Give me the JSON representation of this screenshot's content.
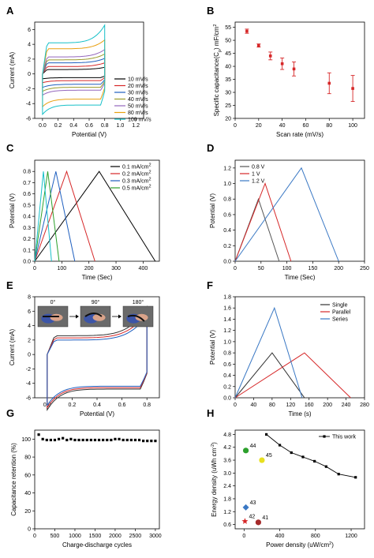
{
  "panel_letters": [
    "A",
    "B",
    "C",
    "D",
    "E",
    "F",
    "G",
    "H"
  ],
  "colors": {
    "black": "#000000",
    "red": "#d62728",
    "olive": "#9a9a2a",
    "blue": "#1f5fbf",
    "purple": "#9467bd",
    "orange": "#e8a010",
    "cyan": "#17c0c8",
    "green": "#2ca02c",
    "darkred": "#a52a2a",
    "steelblue": "#3a78c4"
  },
  "chart_data": [
    {
      "panel": "A",
      "type": "line",
      "xlabel": "Potential (V)",
      "ylabel": "Current (mA)",
      "xlim": [
        -0.1,
        1.3
      ],
      "ylim": [
        -6,
        7
      ],
      "xticks": [
        0.0,
        0.2,
        0.4,
        0.6,
        0.8,
        1.0,
        1.2
      ],
      "xticklabels": [
        "0.0",
        "0.2",
        "0.4",
        "0.6",
        "0.8",
        "1.0",
        "1.2"
      ],
      "yticks": [
        -6,
        -4,
        -2,
        0,
        2,
        4,
        6
      ],
      "yticklabels": [
        "-6",
        "-4",
        "-2",
        "0",
        "2",
        "4",
        "6"
      ],
      "legend_position": "lower-right",
      "series": [
        {
          "name": "10 mV/s",
          "color": "#000000",
          "upper": 0.6,
          "lower": -0.5,
          "tip": 0.9
        },
        {
          "name": "20 mV/s",
          "color": "#d62728",
          "upper": 1.0,
          "lower": -0.9,
          "tip": 1.5
        },
        {
          "name": "30 mV/s",
          "color": "#1f5fbf",
          "upper": 1.5,
          "lower": -1.4,
          "tip": 2.1
        },
        {
          "name": "40 mV/s",
          "color": "#9a9a2a",
          "upper": 1.9,
          "lower": -1.8,
          "tip": 2.7
        },
        {
          "name": "50 mV/s",
          "color": "#9467bd",
          "upper": 2.3,
          "lower": -2.2,
          "tip": 3.3
        },
        {
          "name": "80 mV/s",
          "color": "#e8a010",
          "upper": 3.4,
          "lower": -3.4,
          "tip": 4.6
        },
        {
          "name": "100 mV/s",
          "color": "#17c0c8",
          "upper": 4.2,
          "lower": -4.2,
          "tip": 6.6
        }
      ]
    },
    {
      "panel": "B",
      "type": "scatter",
      "xlabel": "Scan rate (mV/s)",
      "ylabel": "Specific capacitance(C",
      "ylabel_sub": "p",
      "ylabel_tail": ") mF/cm",
      "ylabel_sup": "2",
      "xlim": [
        0,
        110
      ],
      "ylim": [
        20,
        57
      ],
      "xticks": [
        0,
        20,
        40,
        60,
        80,
        100
      ],
      "xticklabels": [
        "0",
        "20",
        "40",
        "60",
        "80",
        "100"
      ],
      "yticks": [
        20,
        25,
        30,
        35,
        40,
        45,
        50,
        55
      ],
      "yticklabels": [
        "20",
        "25",
        "30",
        "35",
        "40",
        "45",
        "50",
        "55"
      ],
      "x": [
        10,
        20,
        30,
        40,
        50,
        80,
        100
      ],
      "y": [
        53.5,
        48.0,
        44.0,
        41.0,
        39.0,
        33.5,
        31.5
      ],
      "err": [
        0.8,
        0.6,
        1.5,
        2.2,
        2.7,
        4.0,
        5.0
      ],
      "color": "#d62728"
    },
    {
      "panel": "C",
      "type": "line",
      "xlabel": "Time (Sec)",
      "ylabel": "Potential (V)",
      "xlim": [
        0,
        460
      ],
      "ylim": [
        0,
        0.9
      ],
      "xticks": [
        0,
        100,
        200,
        300,
        400
      ],
      "xticklabels": [
        "0",
        "100",
        "200",
        "300",
        "400"
      ],
      "yticks": [
        0.0,
        0.1,
        0.2,
        0.3,
        0.4,
        0.5,
        0.6,
        0.7,
        0.8
      ],
      "yticklabels": [
        "0.0",
        "0.1",
        "0.2",
        "0.3",
        "0.4",
        "0.5",
        "0.6",
        "0.7",
        "0.8"
      ],
      "legend_position": "top-right",
      "series": [
        {
          "name": "0.1 mA/cm",
          "sup": "2",
          "color": "#000000",
          "peak_t": 238,
          "end_t": 445,
          "peak_v": 0.8
        },
        {
          "name": "0.2 mA/cm",
          "sup": "2",
          "color": "#d62728",
          "peak_t": 118,
          "end_t": 222,
          "peak_v": 0.8
        },
        {
          "name": "0.3 mA/cm",
          "sup": "2",
          "color": "#1f5fbf",
          "peak_t": 78,
          "end_t": 148,
          "peak_v": 0.8
        },
        {
          "name": "0.5 mA/cm",
          "sup": "2",
          "color": "#2ca02c",
          "peak_t": 48,
          "end_t": 90,
          "peak_v": 0.8
        },
        {
          "name": "",
          "sup": "",
          "color": "#17c0c8",
          "peak_t": 32,
          "end_t": 62,
          "peak_v": 0.8
        }
      ]
    },
    {
      "panel": "D",
      "type": "line",
      "xlabel": "Time (Sec)",
      "ylabel": "Potential (V)",
      "xlim": [
        0,
        250
      ],
      "ylim": [
        0,
        1.3
      ],
      "xticks": [
        0,
        50,
        100,
        150,
        200,
        250
      ],
      "xticklabels": [
        "0",
        "50",
        "100",
        "150",
        "200",
        "250"
      ],
      "yticks": [
        0.0,
        0.2,
        0.4,
        0.6,
        0.8,
        1.0,
        1.2
      ],
      "yticklabels": [
        "0.0",
        "0.2",
        "0.4",
        "0.6",
        "0.8",
        "1.0",
        "1.2"
      ],
      "legend_position": "top-left",
      "series": [
        {
          "name": "0.8 V",
          "color": "#555555",
          "peak_t": 45,
          "end_t": 85,
          "peak_v": 0.8
        },
        {
          "name": "1 V",
          "color": "#d62728",
          "peak_t": 58,
          "end_t": 108,
          "peak_v": 1.0
        },
        {
          "name": "1.2 V",
          "color": "#3a78c4",
          "peak_t": 128,
          "end_t": 200,
          "peak_v": 1.2
        }
      ]
    },
    {
      "panel": "E",
      "type": "line",
      "xlabel": "Potential (V)",
      "ylabel": "Current (mA)",
      "xlim": [
        -0.1,
        0.9
      ],
      "ylim": [
        -6,
        8
      ],
      "xticks": [
        0.0,
        0.2,
        0.4,
        0.6,
        0.8
      ],
      "xticklabels": [
        "0.0",
        "0.2",
        "0.4",
        "0.6",
        "0.8"
      ],
      "yticks": [
        -6,
        -4,
        -2,
        0,
        2,
        4,
        6,
        8
      ],
      "yticklabels": [
        "-6",
        "-4",
        "-2",
        "0",
        "2",
        "4",
        "6",
        "8"
      ],
      "inset_labels": [
        "0°",
        "90°",
        "180°"
      ],
      "series": [
        {
          "name": "0°",
          "color": "#333333",
          "upper": 2.6,
          "lower": -4.8,
          "tip": 6.6
        },
        {
          "name": "90°",
          "color": "#d62728",
          "upper": 2.3,
          "lower": -4.6,
          "tip": 6.0
        },
        {
          "name": "180°",
          "color": "#1f5fbf",
          "upper": 2.0,
          "lower": -4.4,
          "tip": 5.5
        }
      ]
    },
    {
      "panel": "F",
      "type": "line",
      "xlabel": "Time (s)",
      "ylabel": "Potential (V)",
      "xlim": [
        0,
        280
      ],
      "ylim": [
        0,
        1.8
      ],
      "xticks": [
        0,
        40,
        80,
        120,
        160,
        200,
        240,
        280
      ],
      "xticklabels": [
        "0",
        "40",
        "80",
        "120",
        "160",
        "200",
        "240",
        "280"
      ],
      "yticks": [
        0.0,
        0.2,
        0.4,
        0.6,
        0.8,
        1.0,
        1.2,
        1.4,
        1.6,
        1.8
      ],
      "yticklabels": [
        "0.0",
        "0.2",
        "0.4",
        "0.6",
        "0.8",
        "1.0",
        "1.2",
        "1.4",
        "1.6",
        "1.8"
      ],
      "legend_position": "top-right",
      "series": [
        {
          "name": "Single",
          "color": "#333333",
          "peak_t": 80,
          "end_t": 150,
          "peak_v": 0.8
        },
        {
          "name": "Parallel",
          "color": "#d62728",
          "peak_t": 150,
          "end_t": 250,
          "peak_v": 0.8
        },
        {
          "name": "Series",
          "color": "#3a78c4",
          "peak_t": 85,
          "end_t": 145,
          "peak_v": 1.6
        }
      ]
    },
    {
      "panel": "G",
      "type": "scatter",
      "xlabel": "Charge-discharge cycles",
      "ylabel": "Capacitance retention (%)",
      "xlim": [
        0,
        3100
      ],
      "ylim": [
        0,
        110
      ],
      "xticks": [
        0,
        500,
        1000,
        1500,
        2000,
        2500,
        3000
      ],
      "xticklabels": [
        "0",
        "500",
        "1000",
        "1500",
        "2000",
        "2500",
        "3000"
      ],
      "yticks": [
        0,
        20,
        40,
        60,
        80,
        100
      ],
      "yticklabels": [
        "0",
        "20",
        "40",
        "60",
        "80",
        "100"
      ],
      "x": [
        100,
        200,
        300,
        400,
        500,
        600,
        700,
        800,
        900,
        1000,
        1100,
        1200,
        1300,
        1400,
        1500,
        1600,
        1700,
        1800,
        1900,
        2000,
        2100,
        2200,
        2300,
        2400,
        2500,
        2600,
        2700,
        2800,
        2900,
        3000
      ],
      "y": [
        105,
        100,
        99,
        99,
        99,
        100,
        101,
        99,
        100,
        99,
        99,
        99,
        99,
        99,
        99,
        99,
        99,
        99,
        99,
        100,
        100,
        99,
        99,
        99,
        99,
        99,
        98,
        98,
        98,
        98
      ],
      "color": "#000000"
    },
    {
      "panel": "H",
      "type": "scatter",
      "xlabel": "Power density (uW/cm",
      "xlabel_sup": "2",
      "xlabel_tail": ")",
      "ylabel": "Energy density (uWh cm",
      "ylabel_sup": "-2",
      "ylabel_tail": ")",
      "xlim": [
        -100,
        1350
      ],
      "ylim": [
        0.4,
        5.0
      ],
      "xticks": [
        0,
        400,
        800,
        1200
      ],
      "xticklabels": [
        "0",
        "400",
        "800",
        "1200"
      ],
      "yticks": [
        0.6,
        1.2,
        1.8,
        2.4,
        3.0,
        3.6,
        4.2,
        4.8
      ],
      "yticklabels": [
        "0.6",
        "1.2",
        "1.8",
        "2.4",
        "3.0",
        "3.6",
        "4.2",
        "4.8"
      ],
      "legend_position": "top-right",
      "series": [
        {
          "name": "This work",
          "color": "#000000",
          "x": [
            250,
            400,
            530,
            660,
            790,
            920,
            1060,
            1250
          ],
          "y": [
            4.8,
            4.3,
            3.95,
            3.75,
            3.55,
            3.3,
            2.95,
            2.8
          ]
        }
      ],
      "refs": [
        {
          "label": "44",
          "x": 20,
          "y": 4.05,
          "color": "#2ca02c",
          "marker": "circle"
        },
        {
          "label": "45",
          "x": 200,
          "y": 3.6,
          "color": "#e8e020",
          "marker": "circle"
        },
        {
          "label": "43",
          "x": 20,
          "y": 1.4,
          "color": "#3a78c4",
          "marker": "diamond"
        },
        {
          "label": "42",
          "x": 10,
          "y": 0.75,
          "color": "#d62728",
          "marker": "star"
        },
        {
          "label": "41",
          "x": 160,
          "y": 0.7,
          "color": "#a52a2a",
          "marker": "circle"
        }
      ]
    }
  ]
}
